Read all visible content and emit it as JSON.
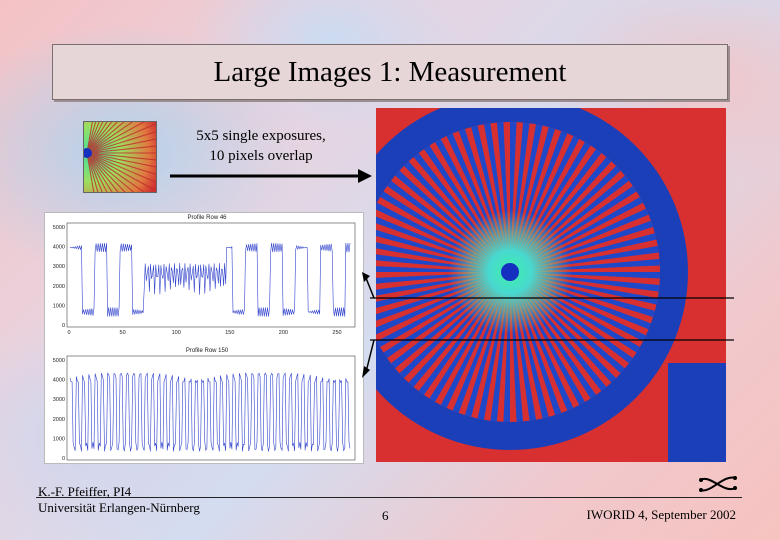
{
  "slide": {
    "title": "Large Images 1: Measurement",
    "caption_line1": "5x5 single exposures,",
    "caption_line2": "10 pixels overlap"
  },
  "plots": {
    "top_title": "Profile Row 46",
    "bottom_title": "Profile Row 150",
    "y_ticks": [
      "5000",
      "4000",
      "3000",
      "2000",
      "1000",
      "0"
    ],
    "x_ticks": [
      "0",
      "50",
      "100",
      "150",
      "200",
      "250"
    ]
  },
  "footer": {
    "author": "K.-F. Pfeiffer, PI4",
    "affiliation": "Universität Erlangen-Nürnberg",
    "page": "6",
    "conference": "IWORID 4, September 2002"
  },
  "colors": {
    "title_bg": "#e7d6d8",
    "image_blue": "#1a3fb8",
    "image_red": "#d83030",
    "plot_line": "#3344cc"
  }
}
